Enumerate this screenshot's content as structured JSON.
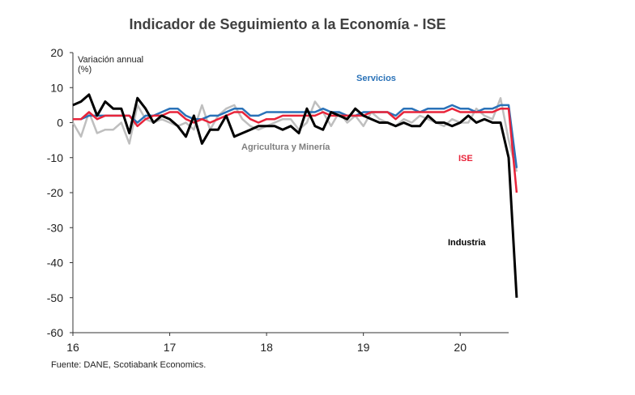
{
  "chart_data": {
    "type": "line",
    "title": "Indicador de Seguimiento a la Economía - ISE",
    "ylabel_lines": [
      "Variación annual",
      "(%)"
    ],
    "ylim": [
      -60,
      20
    ],
    "yticks": [
      20,
      10,
      0,
      -10,
      -20,
      -30,
      -40,
      -50,
      -60
    ],
    "xlim": [
      2016,
      2020.5
    ],
    "xticks": [
      {
        "label": "16",
        "value": 2016
      },
      {
        "label": "17",
        "value": 2017
      },
      {
        "label": "18",
        "value": 2018
      },
      {
        "label": "19",
        "value": 2019
      },
      {
        "label": "20",
        "value": 2020
      }
    ],
    "x_start": 2016,
    "x_step": 0.08333,
    "series": [
      {
        "name": "Agricultura y Minería",
        "color": "#bfbfbf",
        "width": 2.5,
        "values": [
          0,
          -4,
          3,
          -3,
          -2,
          -2,
          0,
          -6,
          5,
          1,
          0,
          1,
          0,
          -1,
          0,
          -2,
          5,
          -2,
          2,
          4,
          5,
          1,
          -1,
          -2,
          -1,
          0,
          1,
          1,
          -2,
          0,
          6,
          3,
          -1,
          3,
          0,
          2,
          -1,
          3,
          1,
          0,
          -1,
          1,
          0,
          2,
          1,
          0,
          -1,
          1,
          0,
          0,
          4,
          2,
          1,
          7,
          -5,
          -14
        ]
      },
      {
        "name": "Servicios",
        "color": "#2a72b8",
        "width": 2.5,
        "values": [
          1,
          1,
          2,
          2,
          2,
          2,
          2,
          2,
          0,
          2,
          2,
          3,
          4,
          4,
          2,
          1,
          1,
          2,
          2,
          3,
          4,
          4,
          2,
          2,
          3,
          3,
          3,
          3,
          3,
          3,
          3,
          4,
          3,
          3,
          2,
          2,
          3,
          3,
          3,
          3,
          2,
          4,
          4,
          3,
          4,
          4,
          4,
          5,
          4,
          4,
          3,
          4,
          4,
          5,
          5,
          -13
        ]
      },
      {
        "name": "ISE",
        "color": "#e8243a",
        "width": 2.5,
        "values": [
          1,
          1,
          3,
          1,
          2,
          2,
          2,
          2,
          -1,
          1,
          2,
          2,
          3,
          3,
          1,
          0,
          1,
          0,
          1,
          2,
          3,
          3,
          1,
          0,
          1,
          1,
          2,
          2,
          2,
          2,
          2,
          3,
          2,
          2,
          2,
          2,
          2,
          3,
          3,
          3,
          1,
          3,
          3,
          3,
          3,
          3,
          3,
          4,
          3,
          3,
          3,
          3,
          3,
          4,
          4,
          -20
        ]
      },
      {
        "name": "Industria",
        "color": "#000000",
        "width": 3,
        "values": [
          5,
          6,
          8,
          2,
          6,
          4,
          4,
          -3,
          7,
          4,
          0,
          2,
          1,
          -1,
          -4,
          2,
          -6,
          -2,
          -2,
          2,
          -4,
          -3,
          -2,
          -1,
          -1,
          -1,
          -2,
          -1,
          -3,
          4,
          -1,
          -2,
          3,
          2,
          1,
          4,
          2,
          1,
          0,
          0,
          -1,
          0,
          -1,
          -1,
          2,
          0,
          0,
          -1,
          0,
          2,
          0,
          1,
          0,
          0,
          -10,
          -50
        ]
      }
    ],
    "annotations": [
      {
        "text": "Servicios",
        "series": "Servicios"
      },
      {
        "text": "Agricultura y Minería",
        "series": "Agricultura y Minería"
      },
      {
        "text": "ISE",
        "series": "ISE"
      },
      {
        "text": "Industria",
        "series": "Industria"
      }
    ],
    "grid": false,
    "legend": "inline"
  },
  "source_text": "Fuente: DANE, Scotiabank Economics."
}
